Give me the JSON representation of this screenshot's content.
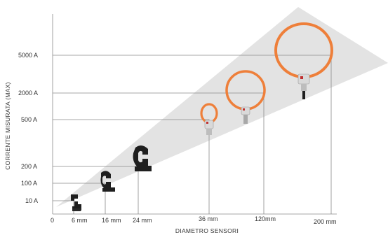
{
  "diagram": {
    "y_axis_title": "CORRENTE MISURATA (MAX)",
    "x_axis_title": "DIAMETRO SENSORI",
    "origin_label": "0",
    "y_levels": [
      "10 A",
      "100 A",
      "200 A",
      "500 A",
      "2000 A",
      "5000 A"
    ],
    "x_levels": [
      "6 mm",
      "16 mm",
      "24 mm",
      "36 mm",
      "120mm",
      "200 mm"
    ],
    "colors": {
      "coil": "#ee7f3a",
      "clamp": "#1f1f1f",
      "wedge": "#e3e3e3",
      "guide": "#8a8a8a"
    }
  }
}
